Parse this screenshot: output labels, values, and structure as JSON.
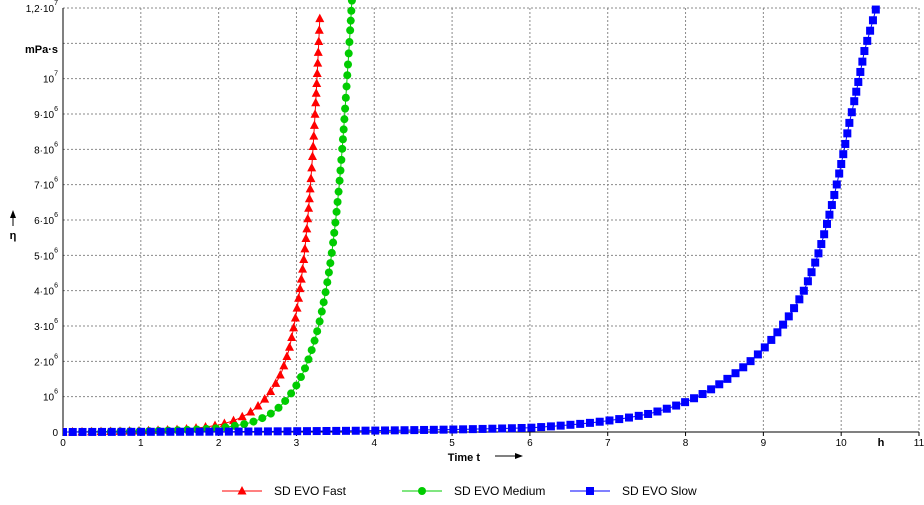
{
  "chart_data": {
    "type": "line",
    "xlabel": "Time t",
    "xunit": "h",
    "ylabel": "η",
    "yunit": "mPa·s",
    "xlim": [
      0,
      11
    ],
    "ylim": [
      0,
      12000000
    ],
    "grid": true,
    "legend_position": "bottom",
    "x_ticks": [
      "0",
      "1",
      "2",
      "3",
      "4",
      "5",
      "6",
      "7",
      "8",
      "9",
      "10",
      "11"
    ],
    "y_ticks": [
      {
        "value": 0,
        "base": "0",
        "exp": ""
      },
      {
        "value": 1000000,
        "base": "10",
        "exp": "6"
      },
      {
        "value": 2000000,
        "base": "2·10",
        "exp": "6"
      },
      {
        "value": 3000000,
        "base": "3·10",
        "exp": "6"
      },
      {
        "value": 4000000,
        "base": "4·10",
        "exp": "6"
      },
      {
        "value": 5000000,
        "base": "5·10",
        "exp": "6"
      },
      {
        "value": 6000000,
        "base": "6·10",
        "exp": "6"
      },
      {
        "value": 7000000,
        "base": "7·10",
        "exp": "6"
      },
      {
        "value": 8000000,
        "base": "8·10",
        "exp": "6"
      },
      {
        "value": 9000000,
        "base": "9·10",
        "exp": "6"
      },
      {
        "value": 10000000,
        "base": "10",
        "exp": "7"
      },
      {
        "value": 12000000,
        "base": "1,2·10",
        "exp": "7"
      }
    ],
    "series": [
      {
        "name": "SD EVO Fast",
        "color": "#ff0000",
        "marker": "triangle",
        "x_start": 0,
        "x_end": 3.3,
        "points": [
          [
            0,
            0
          ],
          [
            1.0,
            30000
          ],
          [
            1.5,
            70000
          ],
          [
            2.0,
            200000
          ],
          [
            2.2,
            330000
          ],
          [
            2.4,
            550000
          ],
          [
            2.6,
            950000
          ],
          [
            2.8,
            1650000
          ],
          [
            2.9,
            2300000
          ],
          [
            3.0,
            3400000
          ],
          [
            3.1,
            5000000
          ],
          [
            3.2,
            7600000
          ],
          [
            3.3,
            11700000
          ]
        ]
      },
      {
        "name": "SD EVO Medium",
        "color": "#00cc00",
        "marker": "circle",
        "x_start": 0,
        "x_end": 3.72,
        "points": [
          [
            0,
            0
          ],
          [
            1.0,
            20000
          ],
          [
            1.5,
            50000
          ],
          [
            2.0,
            110000
          ],
          [
            2.4,
            260000
          ],
          [
            2.7,
            560000
          ],
          [
            2.9,
            1000000
          ],
          [
            3.1,
            1750000
          ],
          [
            3.3,
            3150000
          ],
          [
            3.45,
            5000000
          ],
          [
            3.55,
            7000000
          ],
          [
            3.65,
            10000000
          ],
          [
            3.72,
            12500000
          ]
        ]
      },
      {
        "name": "SD EVO Slow",
        "color": "#0000ff",
        "marker": "square",
        "x_start": 0,
        "x_end": 10.45,
        "points": [
          [
            0,
            0
          ],
          [
            2.0,
            10000
          ],
          [
            4.0,
            40000
          ],
          [
            5.0,
            70000
          ],
          [
            6.0,
            120000
          ],
          [
            6.5,
            200000
          ],
          [
            7.0,
            320000
          ],
          [
            7.5,
            500000
          ],
          [
            8.0,
            850000
          ],
          [
            8.5,
            1450000
          ],
          [
            9.0,
            2350000
          ],
          [
            9.5,
            3900000
          ],
          [
            9.7,
            5000000
          ],
          [
            9.9,
            6600000
          ],
          [
            10.1,
            8700000
          ],
          [
            10.3,
            10800000
          ],
          [
            10.45,
            12000000
          ]
        ]
      }
    ]
  }
}
